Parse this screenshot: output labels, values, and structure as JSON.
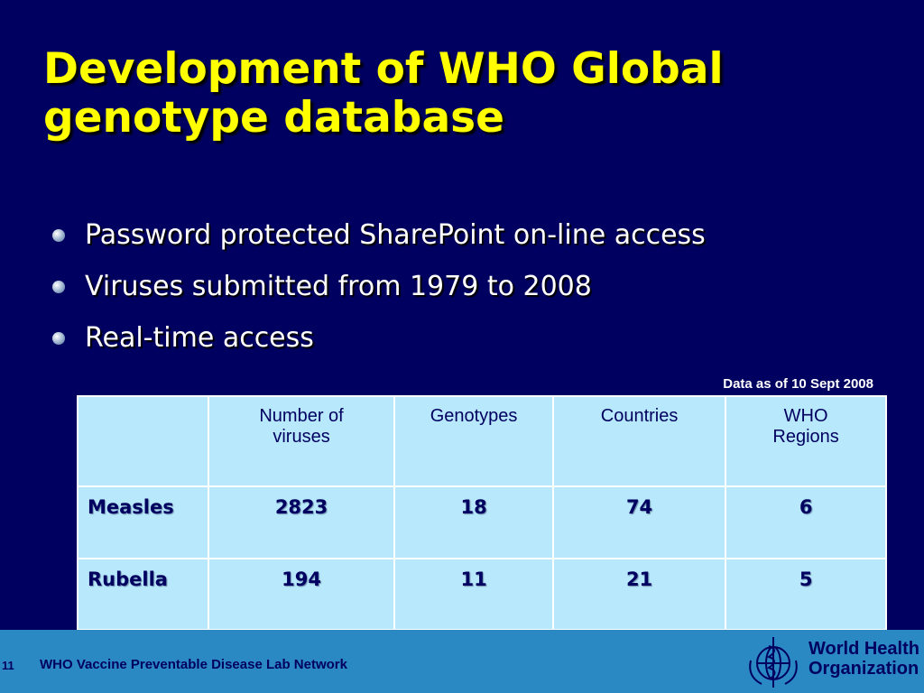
{
  "title": [
    "Development of WHO Global",
    "genotype database"
  ],
  "bullets": [
    "Password protected SharePoint on-line access",
    "Viruses submitted from 1979 to 2008",
    "Real-time access"
  ],
  "note": "Data as of 10 Sept 2008",
  "table": {
    "header": [
      "Number of viruses",
      "Genotypes",
      "Countries",
      "WHO Regions"
    ],
    "rows": [
      {
        "name": "Measles",
        "values": [
          2823,
          18,
          74,
          6
        ]
      },
      {
        "name": "Rubella",
        "values": [
          194,
          11,
          21,
          5
        ]
      }
    ]
  },
  "footer": {
    "page": 11,
    "text": "WHO Vaccine Preventable Disease Lab Network",
    "logo": [
      "World Health",
      "Organization"
    ]
  }
}
